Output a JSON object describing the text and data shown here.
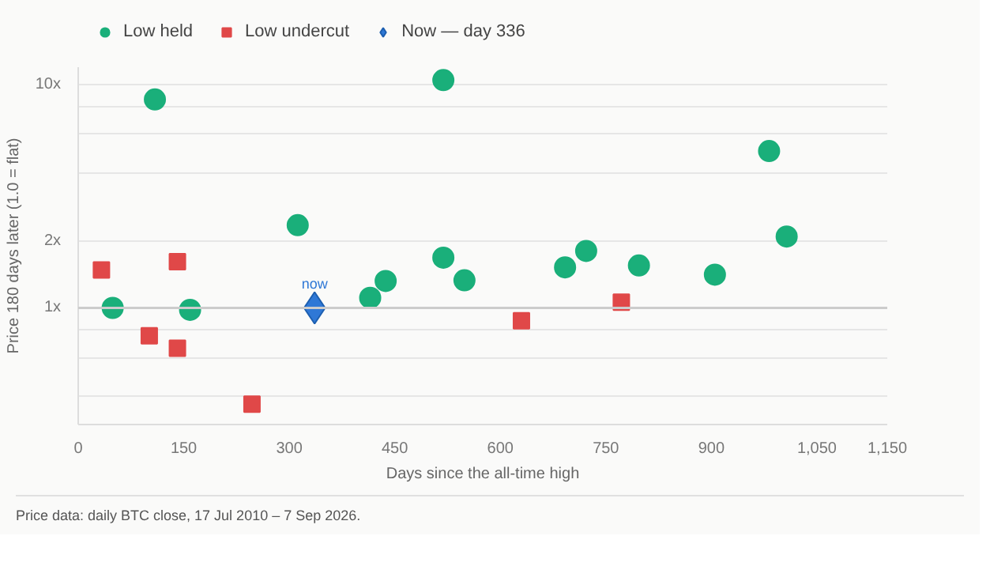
{
  "chart_data": {
    "type": "scatter",
    "xlabel": "Days since the all-time high",
    "ylabel": "Price 180 days later (1.0 = flat)",
    "log": "y",
    "grid": "y",
    "legend": "top left",
    "xlim": [
      0,
      1150
    ],
    "xticks": [
      0,
      150,
      300,
      450,
      600,
      750,
      900,
      {
        "value": 1050,
        "label": "1,050"
      },
      {
        "value": 1150,
        "label": "1,150"
      }
    ],
    "ylim": [
      0.3,
      12
    ],
    "yticks": [
      {
        "value": 0.4,
        "label": null
      },
      {
        "value": 0.6,
        "label": null
      },
      {
        "value": 0.8,
        "label": null
      },
      {
        "value": 1,
        "label": "1x"
      },
      {
        "value": 2,
        "label": "2x"
      },
      {
        "value": 4,
        "label": null
      },
      {
        "value": 6,
        "label": null
      },
      {
        "value": 8,
        "label": null
      },
      {
        "value": 10,
        "label": "10x"
      }
    ],
    "ref_lines": [
      {
        "axis": "y",
        "value": 1,
        "label": null,
        "color": "#cccccc"
      }
    ],
    "series": [
      {
        "name": "Low held",
        "color": "#1aaf7a",
        "marker": "circle",
        "x": [
          49,
          109,
          159,
          312,
          415,
          437,
          519,
          519,
          549,
          692,
          722,
          797,
          905,
          982,
          1007
        ],
        "values": [
          1.0,
          8.6,
          0.98,
          2.35,
          1.11,
          1.32,
          10.5,
          1.68,
          1.33,
          1.52,
          1.8,
          1.55,
          1.41,
          5.05,
          2.09
        ]
      },
      {
        "name": "Low undercut",
        "color": "#e04848",
        "marker": "square",
        "x": [
          33,
          101,
          141,
          141,
          247,
          630,
          772
        ],
        "values": [
          1.48,
          0.75,
          1.61,
          0.66,
          0.37,
          0.875,
          1.06
        ]
      },
      {
        "name": "Now — day 336",
        "color": "#2f78d6",
        "marker": "diamond",
        "x": [
          336
        ],
        "values": [
          1.0
        ]
      }
    ],
    "annotations": [
      {
        "text": "now",
        "x": 336,
        "y": 1.0
      },
      "Price data: daily BTC close, 17 Jul 2010 – 7 Sep 2026."
    ]
  }
}
